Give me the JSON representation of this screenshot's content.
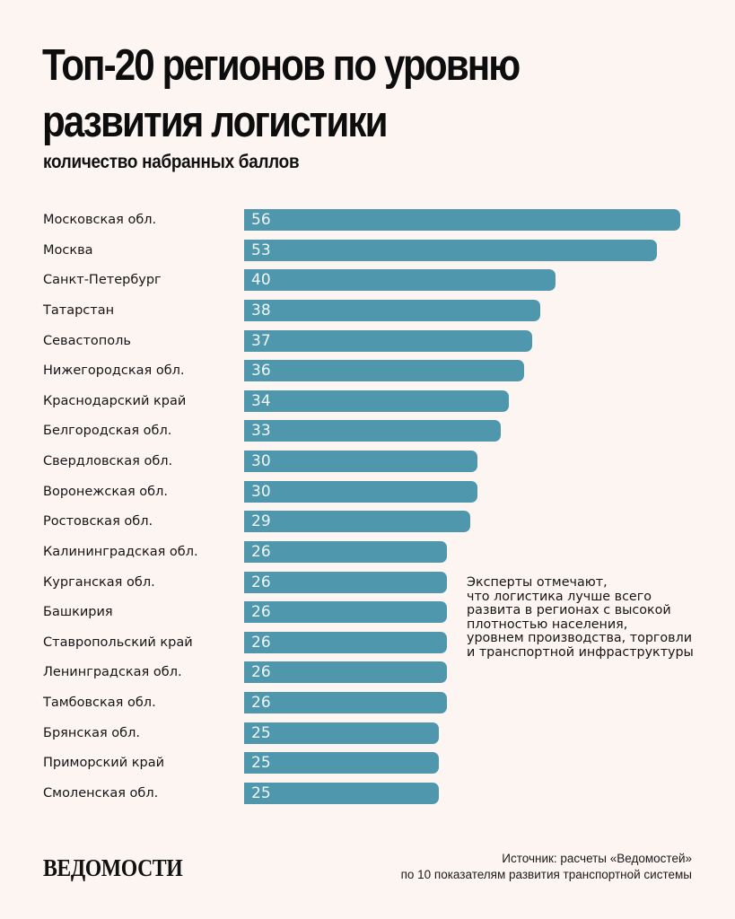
{
  "header": {
    "title_line1": "Топ-20 регионов по уровню",
    "title_line2": "развития логистики",
    "subtitle": "количество набранных баллов"
  },
  "chart_data": {
    "type": "bar",
    "orientation": "horizontal",
    "title": "Топ-20 регионов по уровню развития логистики",
    "subtitle": "количество набранных баллов",
    "xlabel": "",
    "ylabel": "",
    "xlim": [
      0,
      56
    ],
    "grid": false,
    "categories": [
      "Московская обл.",
      "Москва",
      "Санкт-Петербург",
      "Татарстан",
      "Севастополь",
      "Нижегородская обл.",
      "Краснодарский край",
      "Белгородская обл.",
      "Свердловская обл.",
      "Воронежская обл.",
      "Ростовская обл.",
      "Калининградская обл.",
      "Курганская обл.",
      "Башкирия",
      "Ставропольский край",
      "Ленинградская обл.",
      "Тамбовская обл.",
      "Брянская обл.",
      "Приморский край",
      "Смоленская обл."
    ],
    "values": [
      56,
      53,
      40,
      38,
      37,
      36,
      34,
      33,
      30,
      30,
      29,
      26,
      26,
      26,
      26,
      26,
      26,
      25,
      25,
      25
    ],
    "bar_color": "#4f97ad"
  },
  "note": {
    "lines": [
      "Эксперты отмечают,",
      "что логистика лучше всего",
      "развита в регионах с высокой",
      "плотностью населения,",
      "уровнем производства, торговли",
      "и транспортной инфраструктуры"
    ]
  },
  "footer": {
    "logo": "ВЕДОМОСТИ",
    "source_line1": "Источник: расчеты «Ведомостей»",
    "source_line2": "по 10 показателям развития транспортной системы"
  },
  "colors": {
    "background": "#fcf5f2",
    "bar": "#4f97ad",
    "text": "#111111"
  }
}
